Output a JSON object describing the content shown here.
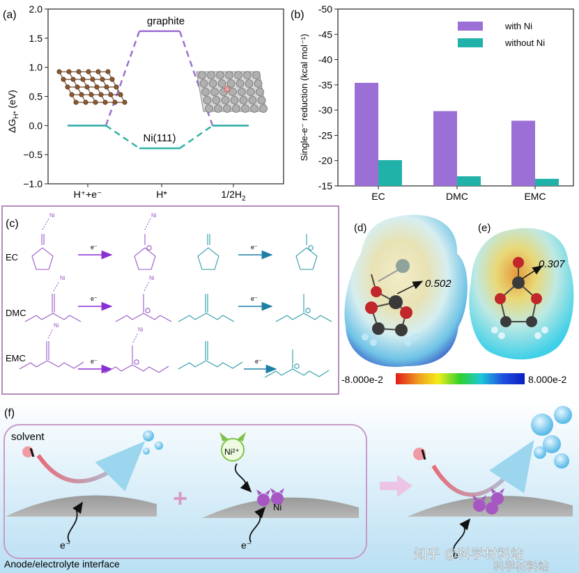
{
  "panel_a": {
    "label": "(a)",
    "ylabel": "ΔG",
    "ylabel_sub": "H*",
    "ylabel_unit": " (eV)",
    "yticks": [
      "2.0",
      "1.5",
      "1.0",
      "0.5",
      "0.0",
      "−0.5",
      "−1.0"
    ],
    "xticks": [
      "H⁺+e⁻",
      "H*",
      "1/2H"
    ],
    "xtick3_sub": "2",
    "graphite_label": "graphite",
    "ni_label": "Ni(111)",
    "colors": {
      "graphite": "#9b6fd3",
      "ni": "#2fb3a6"
    }
  },
  "panel_b": {
    "label": "(b)",
    "legend_with": "with Ni",
    "legend_without": "without Ni",
    "ylabel": "Single-e⁻ reduction (kcal mol⁻¹)",
    "colors": {
      "with": "#9b6fd6",
      "without": "#20b2a8"
    }
  },
  "chart_data": [
    {
      "type": "line",
      "title": "",
      "xlabel": "",
      "ylabel": "ΔG_H* (eV)",
      "ylim": [
        -1.0,
        2.0
      ],
      "categories": [
        "H⁺+e⁻",
        "H*",
        "1/2H2"
      ],
      "series": [
        {
          "name": "graphite",
          "values": [
            0.0,
            1.62,
            0.0
          ]
        },
        {
          "name": "Ni(111)",
          "values": [
            0.0,
            -0.39,
            0.0
          ]
        }
      ]
    },
    {
      "type": "bar",
      "title": "",
      "xlabel": "",
      "ylabel": "Single-e⁻ reduction (kcal mol⁻¹)",
      "ylim": [
        -15,
        -50
      ],
      "categories": [
        "EC",
        "DMC",
        "EMC"
      ],
      "yticks": [
        "-50",
        "-45",
        "-40",
        "-35",
        "-30",
        "-25",
        "-20",
        "-15"
      ],
      "series": [
        {
          "name": "with Ni",
          "values": [
            -35.4,
            -29.8,
            -27.9
          ]
        },
        {
          "name": "without Ni",
          "values": [
            -20.1,
            -16.9,
            -16.4
          ]
        }
      ]
    }
  ],
  "panel_c": {
    "label": "(c)",
    "rows": [
      "EC",
      "DMC",
      "EMC"
    ],
    "electron": "e⁻",
    "ni": "Ni",
    "colors": {
      "purple": "#9a55c8",
      "teal": "#2b9aa8"
    }
  },
  "panel_d": {
    "label": "(d)",
    "value": "0.502"
  },
  "panel_e": {
    "label": "(e)",
    "value": "0.307"
  },
  "colorbar": {
    "min": "-8.000e-2",
    "max": "8.000e-2"
  },
  "panel_f": {
    "label": "(f)",
    "solvent": "solvent",
    "electron": "e⁻",
    "ni_ion": "Ni²⁺",
    "ni": "Ni",
    "interface": "Anode/electrolyte interface"
  },
  "watermark": {
    "main": "知乎 @科学材料站",
    "sub": "科学材料站"
  }
}
